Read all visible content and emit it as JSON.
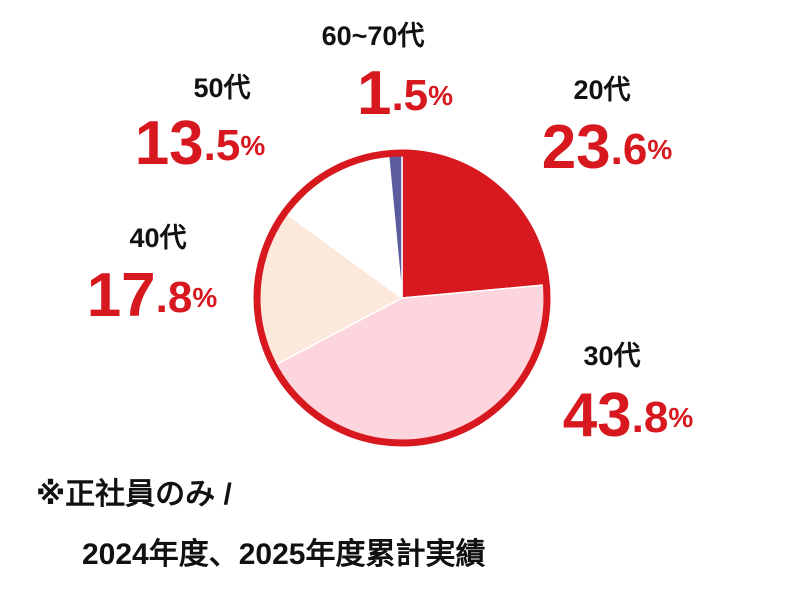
{
  "chart_data": {
    "type": "pie",
    "categories": [
      "20代",
      "30代",
      "40代",
      "50代",
      "60~70代"
    ],
    "values": [
      23.6,
      43.8,
      17.8,
      13.5,
      1.5
    ],
    "value_labels": [
      "23.6%",
      "43.8%",
      "17.8%",
      "13.5%",
      "1.5%"
    ],
    "colors": [
      "#d7191f",
      "#fdd5dd",
      "#fde8dc",
      "#ffffff",
      "#5b5c9e"
    ],
    "border_color": "#d7191f",
    "notes": [
      "※正社員のみ /",
      "2024年度、2025年度累計実績"
    ]
  }
}
